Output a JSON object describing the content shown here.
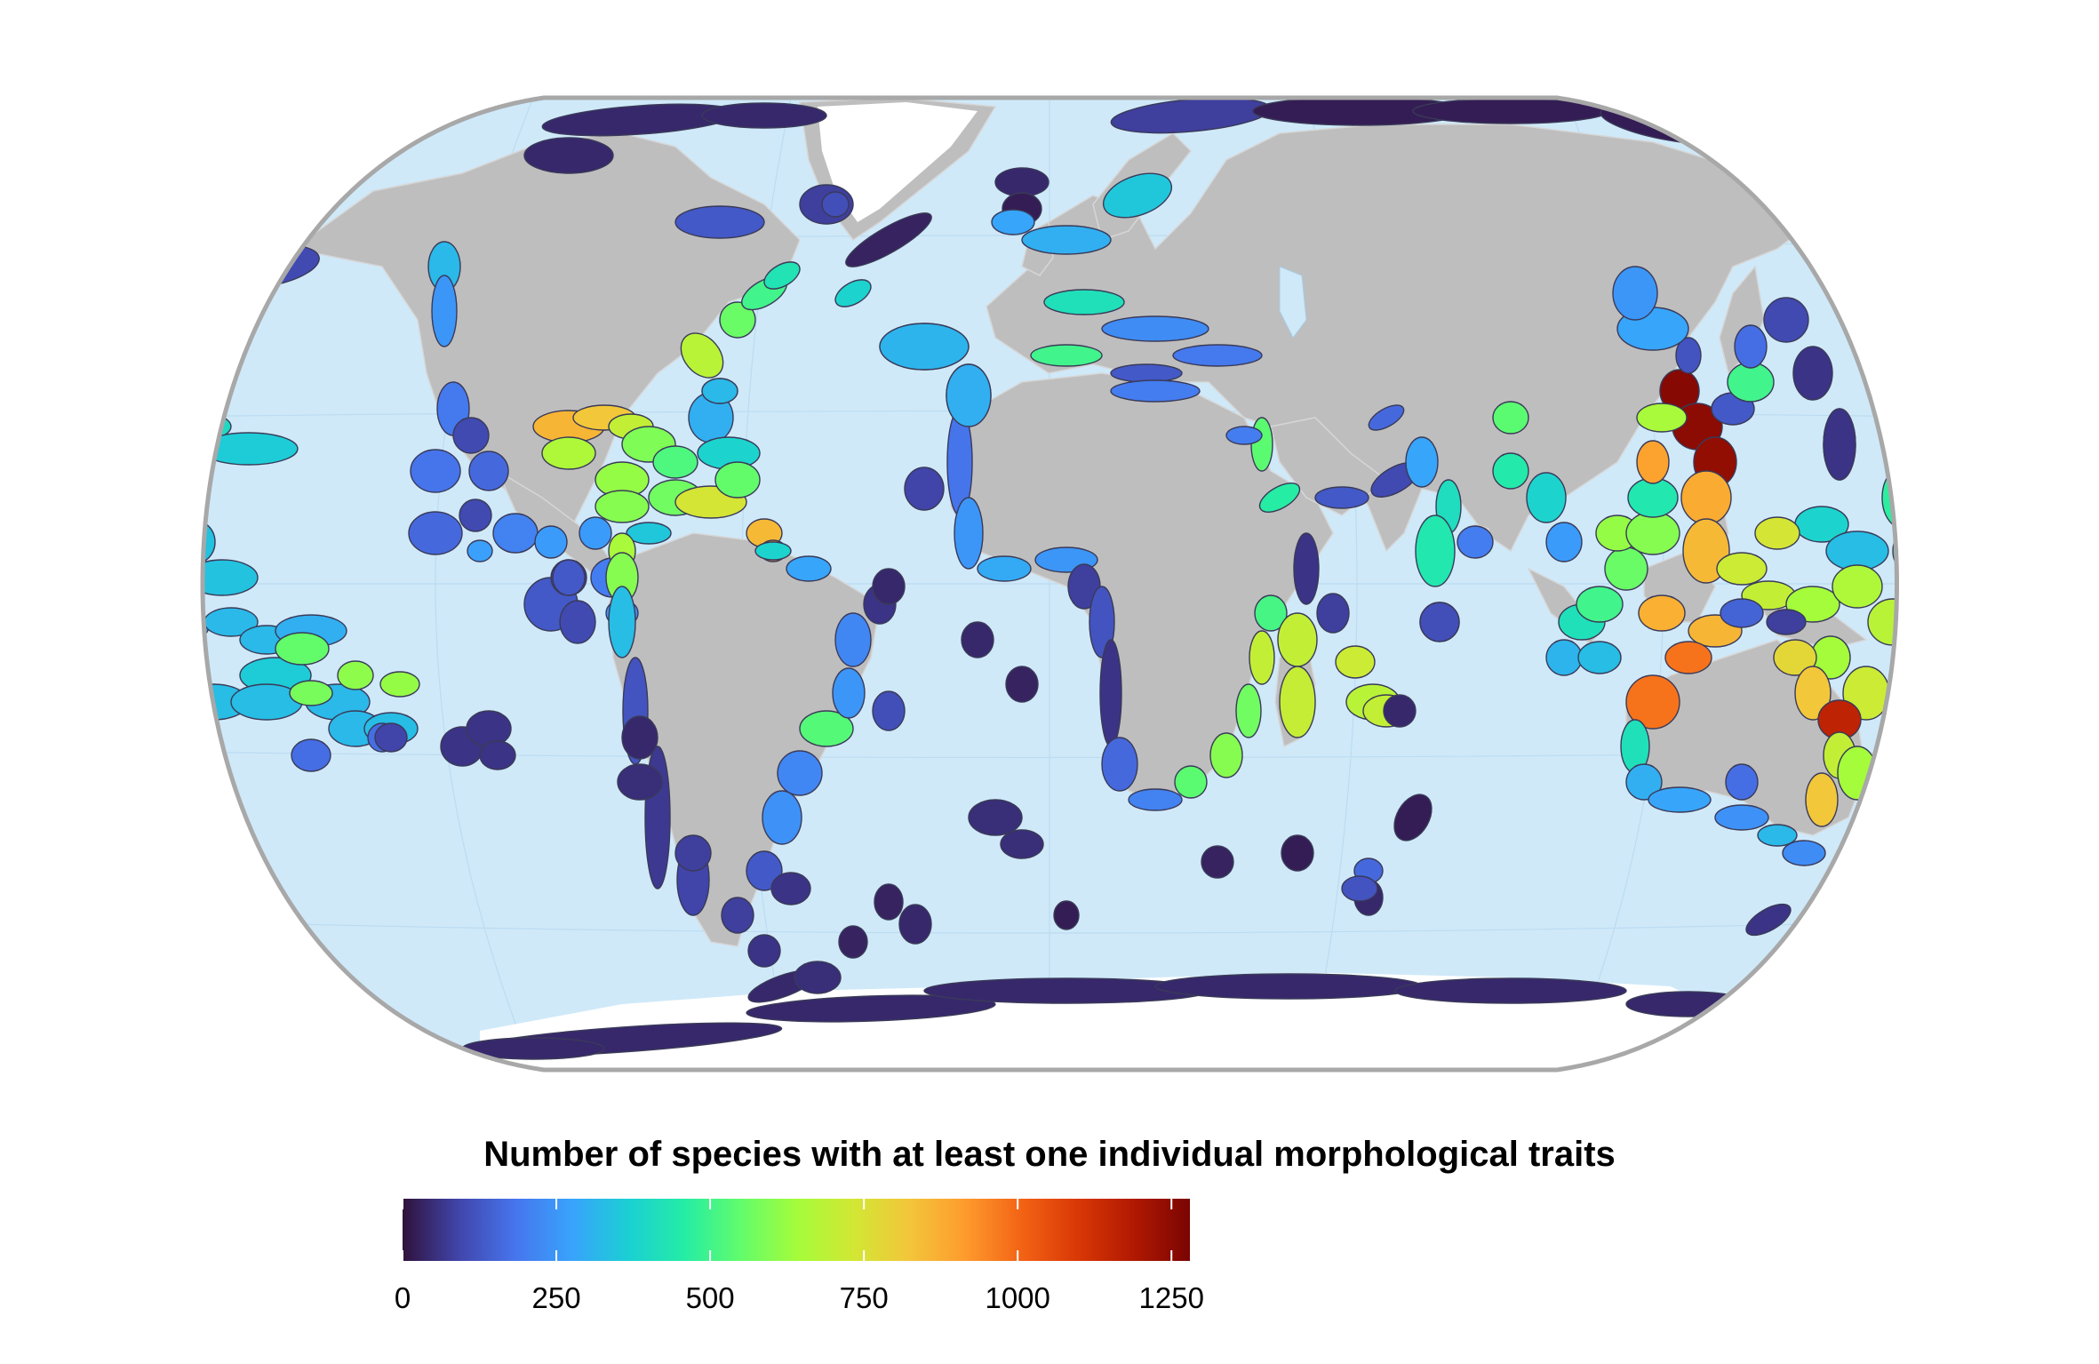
{
  "legend": {
    "title": "Number of species with at least one individual morphological traits",
    "ticks": [
      "0",
      "250",
      "500",
      "750",
      "1000",
      "1250"
    ],
    "tick_values": [
      0,
      250,
      500,
      750,
      1000,
      1250
    ],
    "domain": [
      0,
      1280
    ],
    "colormap": [
      "#30123b",
      "#4145ab",
      "#4675ed",
      "#39a2fc",
      "#1bcfd4",
      "#24eca6",
      "#61fc6c",
      "#a4fc3b",
      "#d1e834",
      "#f3c63a",
      "#fe9b2d",
      "#f36315",
      "#d93806",
      "#b11901",
      "#7a0403"
    ]
  },
  "colors": {
    "ocean": "#cfe9f9",
    "land": "#bebebe",
    "frame": "#a8a8a8",
    "ice": "#ffffff"
  }
}
